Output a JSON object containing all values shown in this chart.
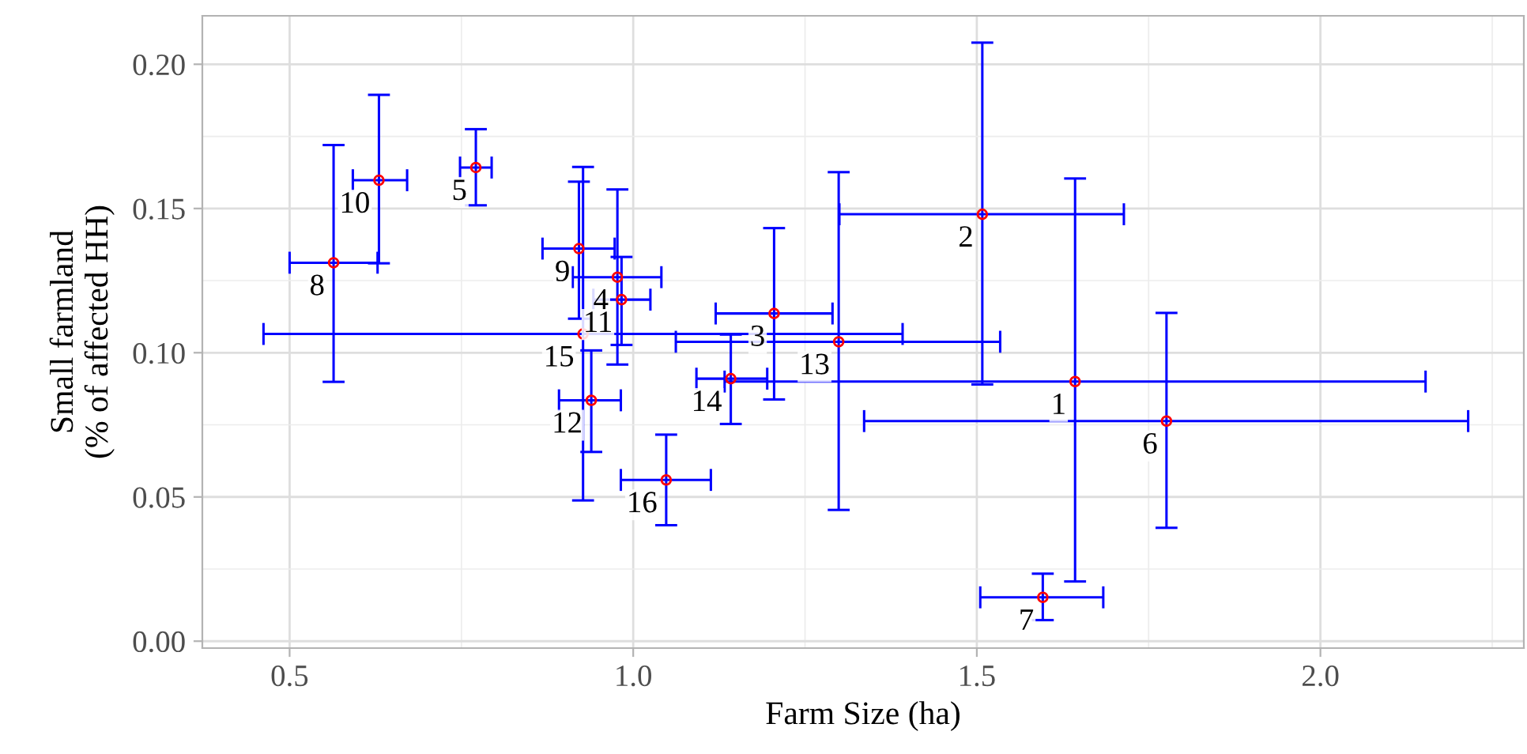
{
  "chart_data": {
    "type": "scatter",
    "xlabel": "Farm Size (ha)",
    "ylabel": "Small farmland\n(% of affected HH)",
    "xlim": [
      0.373,
      2.296
    ],
    "ylim": [
      -0.0024,
      0.2168
    ],
    "xticks": [
      0.5,
      {
        "value": 1,
        "label": "1.0"
      },
      1.5,
      {
        "value": 2,
        "label": "2.0"
      }
    ],
    "yticks": [
      {
        "value": 0.0,
        "label": "0.00"
      },
      {
        "value": 0.05,
        "label": "0.05"
      },
      {
        "value": 0.1,
        "label": "0.10"
      },
      {
        "value": 0.15,
        "label": "0.15"
      },
      {
        "value": 0.2,
        "label": "0.20"
      }
    ],
    "grid": true,
    "marker": "circle",
    "annotations": [
      {
        "text": "1",
        "x": 1.643,
        "y": 0.09
      },
      {
        "text": "2",
        "x": 1.508,
        "y": 0.148
      },
      {
        "text": "3",
        "x": 1.205,
        "y": 0.1136
      },
      {
        "text": "4",
        "x": 0.977,
        "y": 0.1262
      },
      {
        "text": "5",
        "x": 0.771,
        "y": 0.1642
      },
      {
        "text": "6",
        "x": 1.776,
        "y": 0.0763
      },
      {
        "text": "7",
        "x": 1.596,
        "y": 0.0152
      },
      {
        "text": "8",
        "x": 0.564,
        "y": 0.1312
      },
      {
        "text": "9",
        "x": 0.921,
        "y": 0.1361
      },
      {
        "text": "10",
        "x": 0.63,
        "y": 0.1598
      },
      {
        "text": "11",
        "x": 0.983,
        "y": 0.1184
      },
      {
        "text": "12",
        "x": 0.939,
        "y": 0.0835
      },
      {
        "text": "13",
        "x": 1.299,
        "y": 0.1038
      },
      {
        "text": "14",
        "x": 1.142,
        "y": 0.091
      },
      {
        "text": "15",
        "x": 0.927,
        "y": 0.1065
      },
      {
        "text": "16",
        "x": 1.048,
        "y": 0.0559
      }
    ],
    "series": [
      {
        "color": "#ff0000",
        "x": [
          1.643,
          1.508,
          1.205,
          0.977,
          0.771,
          1.776,
          1.596,
          0.564,
          0.921,
          0.63,
          0.983,
          0.939,
          1.299,
          1.142,
          0.927,
          1.048
        ],
        "values": [
          0.09,
          0.148,
          0.1136,
          0.1262,
          0.1642,
          0.0763,
          0.0152,
          0.1312,
          0.1361,
          0.1598,
          0.1184,
          0.0835,
          0.1038,
          0.091,
          0.1065,
          0.0559
        ],
        "errors": [
          [
            0.0207,
            0.1604
          ],
          [
            0.089,
            0.2075
          ],
          [
            0.0838,
            0.1432
          ],
          [
            0.0959,
            0.1566
          ],
          [
            0.1511,
            0.1775
          ],
          [
            0.0393,
            0.1138
          ],
          [
            0.0073,
            0.0234
          ],
          [
            0.0899,
            0.172
          ],
          [
            0.1118,
            0.1593
          ],
          [
            0.131,
            0.1894
          ],
          [
            0.1027,
            0.1332
          ],
          [
            0.0656,
            0.1008
          ],
          [
            0.0455,
            0.1626
          ],
          [
            0.0753,
            0.1063
          ],
          [
            0.0488,
            0.1644
          ],
          [
            0.0402,
            0.0716
          ]
        ],
        "xerrors": [
          [
            1.133,
            2.153
          ],
          [
            1.3,
            1.714
          ],
          [
            1.12,
            1.29
          ],
          [
            0.912,
            1.041
          ],
          [
            0.748,
            0.794
          ],
          [
            1.336,
            2.215
          ],
          [
            1.505,
            1.684
          ],
          [
            0.5,
            0.628
          ],
          [
            0.868,
            0.973
          ],
          [
            0.592,
            0.671
          ],
          [
            0.942,
            1.025
          ],
          [
            0.892,
            0.982
          ],
          [
            1.062,
            1.534
          ],
          [
            1.092,
            1.195
          ],
          [
            0.462,
            1.392
          ],
          [
            0.982,
            1.113
          ]
        ]
      }
    ]
  }
}
